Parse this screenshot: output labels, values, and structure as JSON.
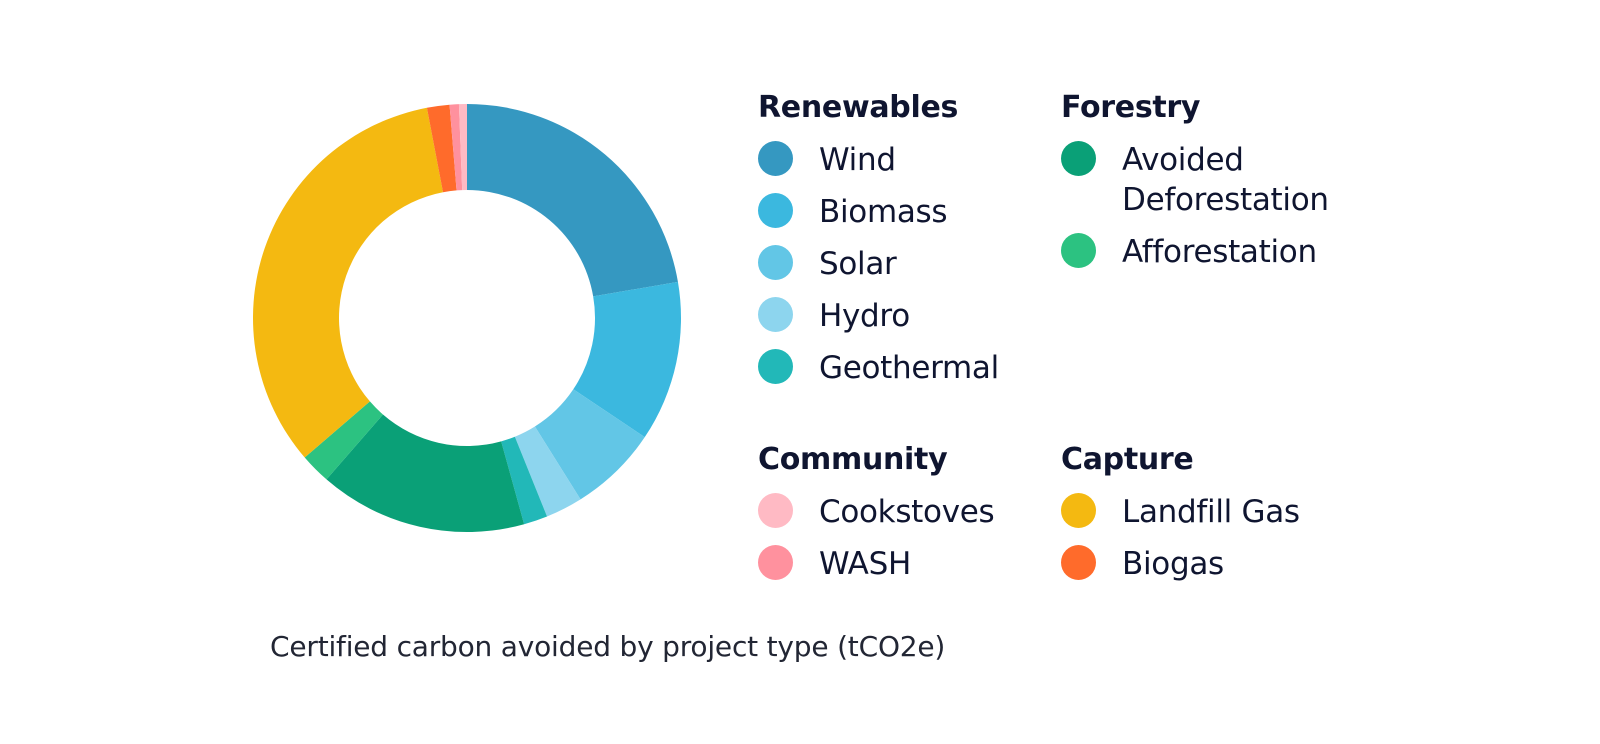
{
  "chart_data": {
    "type": "pie",
    "donut": true,
    "title": "Certified carbon avoided by project type (tCO2e)",
    "legend_placement": "right",
    "groups": [
      {
        "title": "Renewables",
        "entries": [
          {
            "label": "Wind",
            "color": "#3598c1"
          },
          {
            "label": "Biomass",
            "color": "#3bb8df"
          },
          {
            "label": "Solar",
            "color": "#62c6e6"
          },
          {
            "label": "Hydro",
            "color": "#8dd5ee"
          },
          {
            "label": "Geothermal",
            "color": "#22b8b8"
          }
        ]
      },
      {
        "title": "Forestry",
        "entries": [
          {
            "label": "Avoided Deforestation",
            "color": "#0aa077"
          },
          {
            "label": "Afforestation",
            "color": "#2cc281"
          }
        ]
      },
      {
        "title": "Community",
        "entries": [
          {
            "label": "Cookstoves",
            "color": "#ffbac4"
          },
          {
            "label": "WASH",
            "color": "#ff919e"
          }
        ]
      },
      {
        "title": "Capture",
        "entries": [
          {
            "label": "Landfill Gas",
            "color": "#f4b911"
          },
          {
            "label": "Biogas",
            "color": "#ff6b2b"
          }
        ]
      }
    ],
    "slices": [
      {
        "label": "Wind",
        "value": 22.3,
        "color": "#3598c1"
      },
      {
        "label": "Biomass",
        "value": 12.1,
        "color": "#3bb8df"
      },
      {
        "label": "Solar",
        "value": 6.7,
        "color": "#62c6e6"
      },
      {
        "label": "Hydro",
        "value": 2.8,
        "color": "#8dd5ee"
      },
      {
        "label": "Geothermal",
        "value": 1.8,
        "color": "#22b8b8"
      },
      {
        "label": "Avoided Deforestation",
        "value": 15.7,
        "color": "#0aa077"
      },
      {
        "label": "Afforestation",
        "value": 2.3,
        "color": "#2cc281"
      },
      {
        "label": "Landfill Gas",
        "value": 33.3,
        "color": "#f4b911"
      },
      {
        "label": "Biogas",
        "value": 1.7,
        "color": "#ff6b2b"
      },
      {
        "label": "WASH",
        "value": 0.7,
        "color": "#ff919e"
      },
      {
        "label": "Cookstoves",
        "value": 0.6,
        "color": "#ffbac4"
      }
    ]
  }
}
